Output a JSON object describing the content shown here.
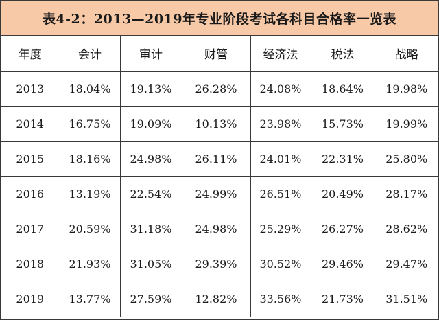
{
  "title": "表4-2：2013—2019年专业阶段考试各科目合格率一览表",
  "colors": {
    "title_background": "#f8c9a7",
    "border": "#3a3a3a",
    "text": "#1a1a1a"
  },
  "table": {
    "headers": [
      "年度",
      "会计",
      "审计",
      "财管",
      "经济法",
      "税法",
      "战略"
    ],
    "rows": [
      [
        "2013",
        "18.04%",
        "19.13%",
        "26.28%",
        "24.08%",
        "18.64%",
        "19.98%"
      ],
      [
        "2014",
        "16.75%",
        "19.09%",
        "10.13%",
        "23.98%",
        "15.73%",
        "19.99%"
      ],
      [
        "2015",
        "18.16%",
        "24.98%",
        "26.11%",
        "24.01%",
        "22.31%",
        "25.80%"
      ],
      [
        "2016",
        "13.19%",
        "22.54%",
        "24.99%",
        "26.51%",
        "20.49%",
        "28.17%"
      ],
      [
        "2017",
        "20.59%",
        "31.18%",
        "24.98%",
        "25.29%",
        "26.27%",
        "28.62%"
      ],
      [
        "2018",
        "21.93%",
        "31.05%",
        "29.39%",
        "30.52%",
        "29.46%",
        "29.47%"
      ],
      [
        "2019",
        "13.77%",
        "27.59%",
        "12.82%",
        "33.56%",
        "21.73%",
        "31.51%"
      ]
    ]
  }
}
